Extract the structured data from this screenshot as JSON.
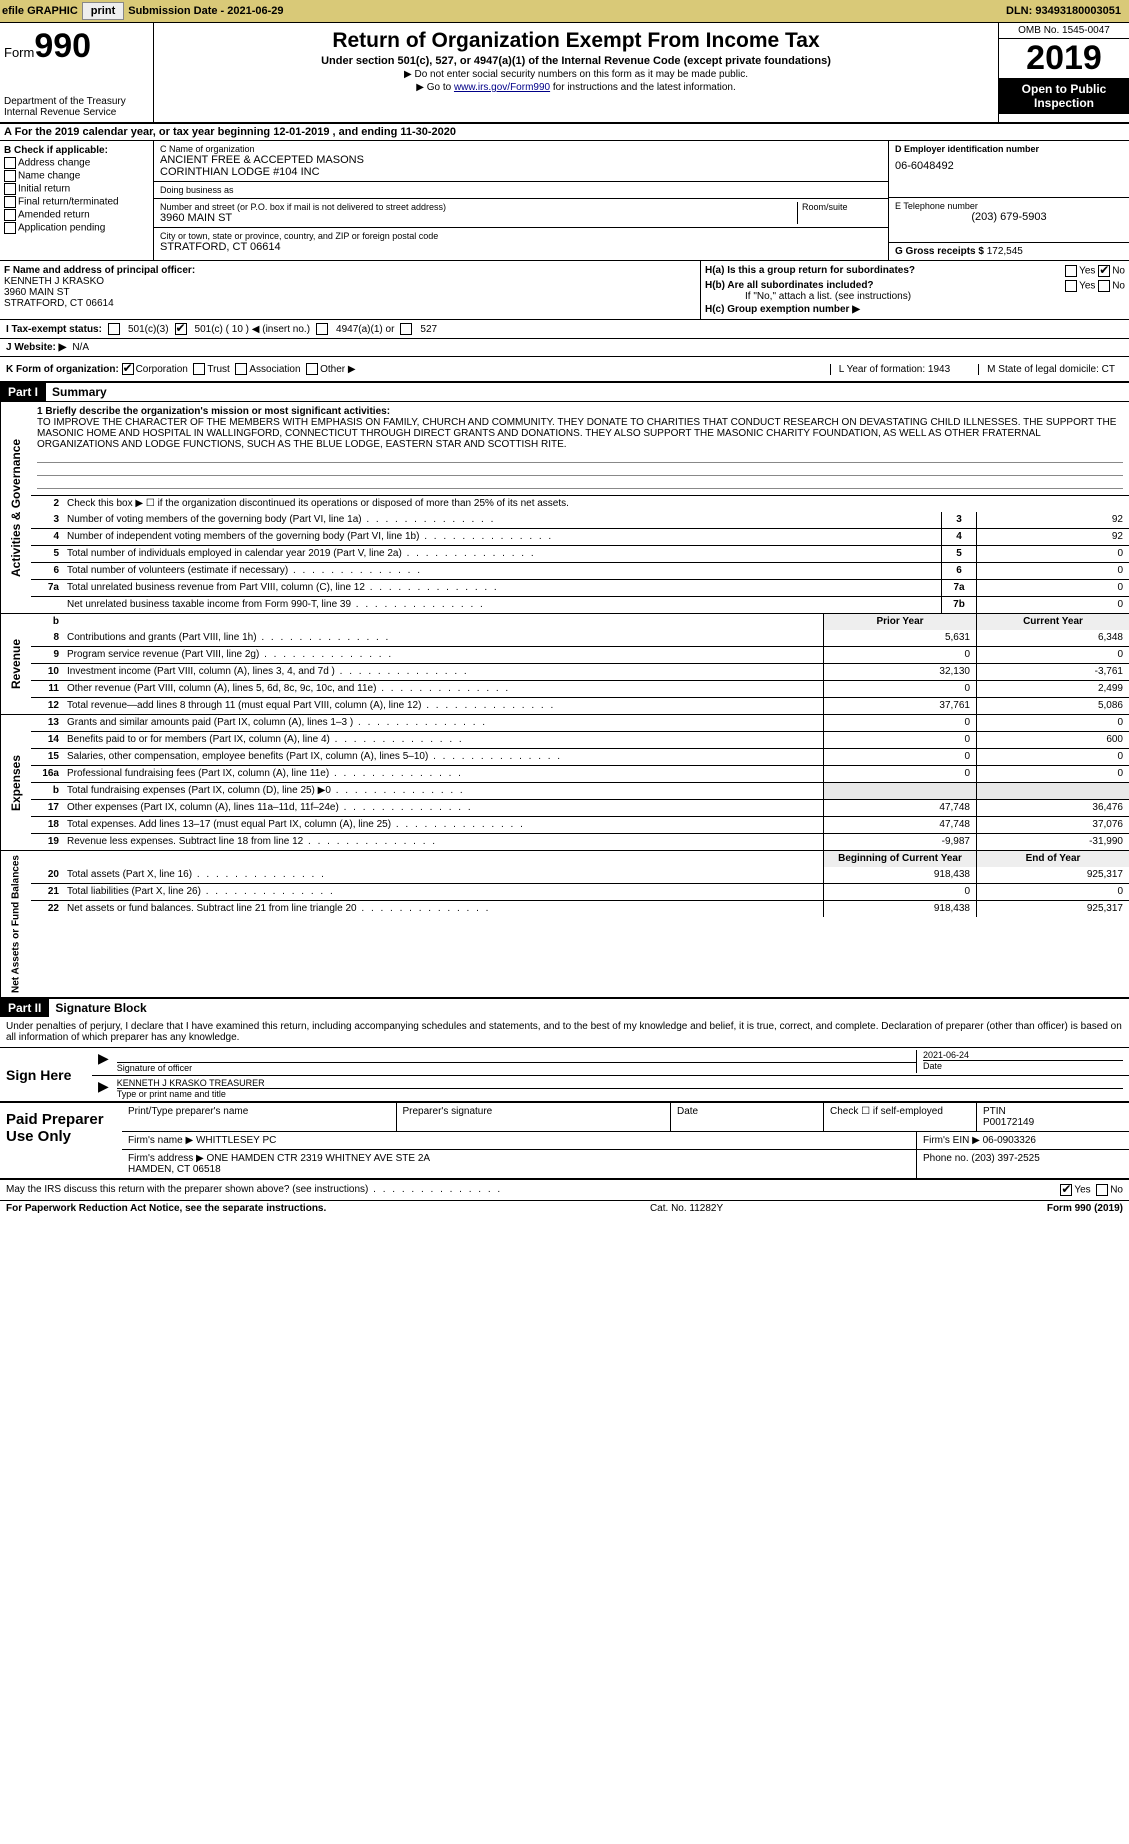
{
  "topbar": {
    "efile_label": "efile GRAPHIC",
    "print_btn": "print",
    "submission_label": "Submission Date - 2021-06-29",
    "dln": "DLN: 93493180003051"
  },
  "header": {
    "form_word": "Form",
    "form_num": "990",
    "dept": "Department of the Treasury\nInternal Revenue Service",
    "title": "Return of Organization Exempt From Income Tax",
    "subtitle": "Under section 501(c), 527, or 4947(a)(1) of the Internal Revenue Code (except private foundations)",
    "note1": "▶ Do not enter social security numbers on this form as it may be made public.",
    "note2_pre": "▶ Go to ",
    "note2_link": "www.irs.gov/Form990",
    "note2_post": " for instructions and the latest information.",
    "omb": "OMB No. 1545-0047",
    "year": "2019",
    "open_public": "Open to Public Inspection"
  },
  "row_a": "For the 2019 calendar year, or tax year beginning 12-01-2019   , and ending 11-30-2020",
  "section_b": {
    "label": "B Check if applicable:",
    "items": [
      "Address change",
      "Name change",
      "Initial return",
      "Final return/terminated",
      "Amended return",
      "Application pending"
    ]
  },
  "section_c": {
    "name_label": "C Name of organization",
    "name": "ANCIENT FREE & ACCEPTED MASONS\nCORINTHIAN LODGE #104 INC",
    "dba_label": "Doing business as",
    "dba": "",
    "street_label": "Number and street (or P.O. box if mail is not delivered to street address)",
    "street": "3960 MAIN ST",
    "room_label": "Room/suite",
    "room": "",
    "city_label": "City or town, state or province, country, and ZIP or foreign postal code",
    "city": "STRATFORD, CT  06614"
  },
  "section_d": {
    "ein_label": "D Employer identification number",
    "ein": "06-6048492",
    "phone_label": "E Telephone number",
    "phone": "(203) 679-5903",
    "gross_label": "G Gross receipts $",
    "gross": "172,545"
  },
  "section_f": {
    "label": "F  Name and address of principal officer:",
    "name": "KENNETH J KRASKO",
    "street": "3960 MAIN ST",
    "city": "STRATFORD, CT  06614"
  },
  "section_h": {
    "ha": "H(a)  Is this a group return for subordinates?",
    "hb": "H(b)  Are all subordinates included?",
    "hb_note": "If \"No,\" attach a list. (see instructions)",
    "hc": "H(c)  Group exemption number ▶",
    "yes": "Yes",
    "no": "No"
  },
  "section_i": {
    "label": "I  Tax-exempt status:",
    "opts": [
      "501(c)(3)",
      "501(c) ( 10 ) ◀ (insert no.)",
      "4947(a)(1) or",
      "527"
    ]
  },
  "section_j": {
    "label": "J  Website: ▶",
    "value": "N/A"
  },
  "section_k": {
    "label": "K Form of organization:",
    "opts": [
      "Corporation",
      "Trust",
      "Association",
      "Other ▶"
    ],
    "l": "L Year of formation: 1943",
    "m": "M State of legal domicile: CT"
  },
  "part1": {
    "header": "Part I",
    "title": "Summary",
    "line1_label": "1  Briefly describe the organization's mission or most significant activities:",
    "mission": "TO IMPROVE THE CHARACTER OF THE MEMBERS WITH EMPHASIS ON FAMILY, CHURCH AND COMMUNITY. THEY DONATE TO CHARITIES THAT CONDUCT RESEARCH ON DEVASTATING CHILD ILLNESSES. THE SUPPORT THE MASONIC HOME AND HOSPITAL IN WALLINGFORD, CONNECTICUT THROUGH DIRECT GRANTS AND DONATIONS. THEY ALSO SUPPORT THE MASONIC CHARITY FOUNDATION, AS WELL AS OTHER FRATERNAL ORGANIZATIONS AND LODGE FUNCTIONS, SUCH AS THE BLUE LODGE, EASTERN STAR AND SCOTTISH RITE.",
    "line2": "Check this box ▶ ☐  if the organization discontinued its operations or disposed of more than 25% of its net assets.",
    "sidebar1": "Activities & Governance",
    "sidebar2": "Revenue",
    "sidebar3": "Expenses",
    "sidebar4": "Net Assets or Fund Balances"
  },
  "gov_lines": [
    {
      "n": "3",
      "d": "Number of voting members of the governing body (Part VI, line 1a)",
      "box": "3",
      "v": "92"
    },
    {
      "n": "4",
      "d": "Number of independent voting members of the governing body (Part VI, line 1b)",
      "box": "4",
      "v": "92"
    },
    {
      "n": "5",
      "d": "Total number of individuals employed in calendar year 2019 (Part V, line 2a)",
      "box": "5",
      "v": "0"
    },
    {
      "n": "6",
      "d": "Total number of volunteers (estimate if necessary)",
      "box": "6",
      "v": "0"
    },
    {
      "n": "7a",
      "d": "Total unrelated business revenue from Part VIII, column (C), line 12",
      "box": "7a",
      "v": "0"
    },
    {
      "n": "",
      "d": "Net unrelated business taxable income from Form 990-T, line 39",
      "box": "7b",
      "v": "0"
    }
  ],
  "col_headers": {
    "b": "b",
    "prior": "Prior Year",
    "current": "Current Year"
  },
  "rev_lines": [
    {
      "n": "8",
      "d": "Contributions and grants (Part VIII, line 1h)",
      "p": "5,631",
      "c": "6,348"
    },
    {
      "n": "9",
      "d": "Program service revenue (Part VIII, line 2g)",
      "p": "0",
      "c": "0"
    },
    {
      "n": "10",
      "d": "Investment income (Part VIII, column (A), lines 3, 4, and 7d )",
      "p": "32,130",
      "c": "-3,761"
    },
    {
      "n": "11",
      "d": "Other revenue (Part VIII, column (A), lines 5, 6d, 8c, 9c, 10c, and 11e)",
      "p": "0",
      "c": "2,499"
    },
    {
      "n": "12",
      "d": "Total revenue—add lines 8 through 11 (must equal Part VIII, column (A), line 12)",
      "p": "37,761",
      "c": "5,086"
    }
  ],
  "exp_lines": [
    {
      "n": "13",
      "d": "Grants and similar amounts paid (Part IX, column (A), lines 1–3 )",
      "p": "0",
      "c": "0"
    },
    {
      "n": "14",
      "d": "Benefits paid to or for members (Part IX, column (A), line 4)",
      "p": "0",
      "c": "600"
    },
    {
      "n": "15",
      "d": "Salaries, other compensation, employee benefits (Part IX, column (A), lines 5–10)",
      "p": "0",
      "c": "0"
    },
    {
      "n": "16a",
      "d": "Professional fundraising fees (Part IX, column (A), line 11e)",
      "p": "0",
      "c": "0"
    },
    {
      "n": "b",
      "d": "Total fundraising expenses (Part IX, column (D), line 25) ▶0",
      "p": "",
      "c": "",
      "shade": true
    },
    {
      "n": "17",
      "d": "Other expenses (Part IX, column (A), lines 11a–11d, 11f–24e)",
      "p": "47,748",
      "c": "36,476"
    },
    {
      "n": "18",
      "d": "Total expenses. Add lines 13–17 (must equal Part IX, column (A), line 25)",
      "p": "47,748",
      "c": "37,076"
    },
    {
      "n": "19",
      "d": "Revenue less expenses. Subtract line 18 from line 12",
      "p": "-9,987",
      "c": "-31,990"
    }
  ],
  "net_header": {
    "prior": "Beginning of Current Year",
    "current": "End of Year"
  },
  "net_lines": [
    {
      "n": "20",
      "d": "Total assets (Part X, line 16)",
      "p": "918,438",
      "c": "925,317"
    },
    {
      "n": "21",
      "d": "Total liabilities (Part X, line 26)",
      "p": "0",
      "c": "0"
    },
    {
      "n": "22",
      "d": "Net assets or fund balances. Subtract line 21 from line triangle 20",
      "p": "918,438",
      "c": "925,317"
    }
  ],
  "part2": {
    "header": "Part II",
    "title": "Signature Block",
    "declaration": "Under penalties of perjury, I declare that I have examined this return, including accompanying schedules and statements, and to the best of my knowledge and belief, it is true, correct, and complete. Declaration of preparer (other than officer) is based on all information of which preparer has any knowledge.",
    "sign_here": "Sign Here",
    "sig_officer": "Signature of officer",
    "sig_date": "2021-06-24",
    "date_label": "Date",
    "officer_name": "KENNETH J KRASKO TREASURER",
    "type_name": "Type or print name and title"
  },
  "preparer": {
    "label": "Paid Preparer Use Only",
    "print_name_label": "Print/Type preparer's name",
    "print_name": "",
    "sig_label": "Preparer's signature",
    "date_label": "Date",
    "check_label": "Check ☐ if self-employed",
    "ptin_label": "PTIN",
    "ptin": "P00172149",
    "firm_name_label": "Firm's name    ▶",
    "firm_name": "WHITTLESEY PC",
    "firm_ein_label": "Firm's EIN ▶",
    "firm_ein": "06-0903326",
    "firm_addr_label": "Firm's address ▶",
    "firm_addr": "ONE HAMDEN CTR 2319 WHITNEY AVE STE 2A\nHAMDEN, CT  06518",
    "phone_label": "Phone no.",
    "phone": "(203) 397-2525"
  },
  "footer_q": {
    "q": "May the IRS discuss this return with the preparer shown above? (see instructions)",
    "yes": "Yes",
    "no": "No"
  },
  "footer": {
    "left": "For Paperwork Reduction Act Notice, see the separate instructions.",
    "mid": "Cat. No. 11282Y",
    "right": "Form 990 (2019)"
  }
}
